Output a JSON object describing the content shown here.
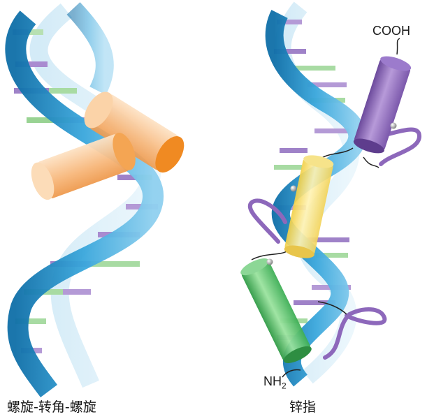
{
  "panels": [
    {
      "id": "helix-turn-helix",
      "caption": "螺旋-转角-螺旋"
    },
    {
      "id": "zinc-finger",
      "caption": "锌指"
    }
  ],
  "labels": {
    "c_terminus": "COOH",
    "n_terminus_main": "NH",
    "n_terminus_sub": "2"
  },
  "colors": {
    "dna_backbone": "#1e90c8",
    "dna_backbone_light": "#a9d8f0",
    "base_pair_purple": "#9b7fc4",
    "base_pair_green": "#9fd49a",
    "htH_helix": "#f5b070",
    "zinc_helix_purple": "#8d68bb",
    "zinc_helix_yellow": "#f7e27a",
    "zinc_helix_green": "#5fc46e",
    "zinc_ion": "#999999"
  }
}
